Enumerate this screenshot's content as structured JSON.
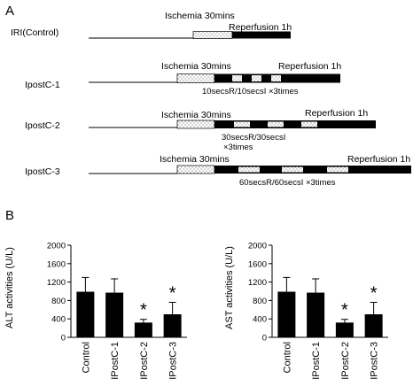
{
  "panel_a": {
    "letter": "A",
    "ischemia_label": "Ischemia 30mins",
    "reperfusion_label": "Reperfusion 1h",
    "rows": [
      {
        "name": "IRI(Control)",
        "cycle_lines": []
      },
      {
        "name": "IpostC-1",
        "cycle_lines": [
          "10secsR/10secsI  ×3times"
        ]
      },
      {
        "name": "IpostC-2",
        "cycle_lines": [
          "30secsR/30secsI",
          "×3times"
        ]
      },
      {
        "name": "IpostC-3",
        "cycle_lines": [
          "60secsR/60secsI  ×3times"
        ]
      }
    ]
  },
  "panel_b": {
    "letter": "B",
    "significance_mark": "*"
  },
  "chart_data": [
    {
      "type": "bar",
      "categories": [
        "Control",
        "IPostC-1",
        "IPostC-2",
        "IPostC-3"
      ],
      "values": [
        990,
        970,
        320,
        500
      ],
      "errors": [
        310,
        300,
        70,
        260
      ],
      "significant": [
        false,
        false,
        true,
        true
      ],
      "title": "",
      "xlabel": "",
      "ylabel": "ALT activities (U/L)",
      "ylim": [
        0,
        2000
      ],
      "yticks": [
        0,
        400,
        800,
        1200,
        1600,
        2000
      ],
      "bar_color": "#000000"
    },
    {
      "type": "bar",
      "categories": [
        "Control",
        "IPostC-1",
        "IPostC-2",
        "IPostC-3"
      ],
      "values": [
        990,
        970,
        320,
        500
      ],
      "errors": [
        310,
        300,
        70,
        260
      ],
      "significant": [
        false,
        false,
        true,
        true
      ],
      "title": "",
      "xlabel": "",
      "ylabel": "AST activities (U/L)",
      "ylim": [
        0,
        2000
      ],
      "yticks": [
        0,
        400,
        800,
        1200,
        1600,
        2000
      ],
      "bar_color": "#000000"
    }
  ]
}
